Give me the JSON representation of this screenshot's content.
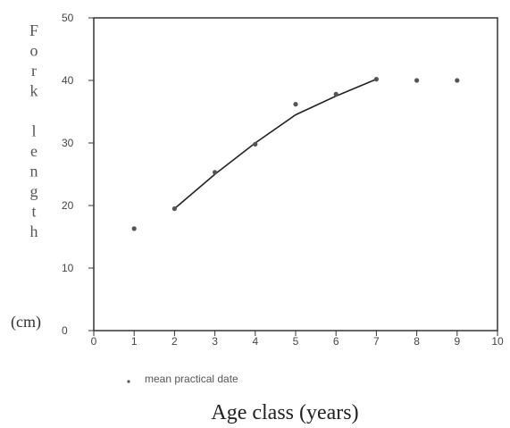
{
  "chart_data": {
    "type": "scatter",
    "title": "",
    "xlabel": "Age class (years)",
    "ylabel_letters": [
      "F",
      "o",
      "r",
      "k",
      "",
      "l",
      "e",
      "n",
      "g",
      "t",
      "h"
    ],
    "ylabel_units": "(cm)",
    "xlim": [
      0,
      10
    ],
    "ylim": [
      0,
      50
    ],
    "xticks": [
      "0",
      "1",
      "2",
      "3",
      "4",
      "5",
      "6",
      "7",
      "8",
      "9",
      "10"
    ],
    "yticks": [
      "0",
      "10",
      "20",
      "30",
      "40",
      "50"
    ],
    "grid": false,
    "legend": {
      "placement": "bottom-left",
      "marker": ".",
      "label": "mean practical date"
    },
    "points": [
      {
        "x": 1,
        "y": 16.3
      },
      {
        "x": 2,
        "y": 19.5
      },
      {
        "x": 3,
        "y": 25.3
      },
      {
        "x": 4,
        "y": 29.8
      },
      {
        "x": 5,
        "y": 36.2
      },
      {
        "x": 6,
        "y": 37.8
      },
      {
        "x": 7,
        "y": 40.2
      },
      {
        "x": 8,
        "y": 40.0
      },
      {
        "x": 9,
        "y": 40.0
      }
    ],
    "fit_line": {
      "x": [
        2,
        3,
        4,
        5,
        6,
        7
      ],
      "y": [
        19.5,
        25.0,
        30.0,
        34.5,
        37.5,
        40.2
      ]
    }
  }
}
